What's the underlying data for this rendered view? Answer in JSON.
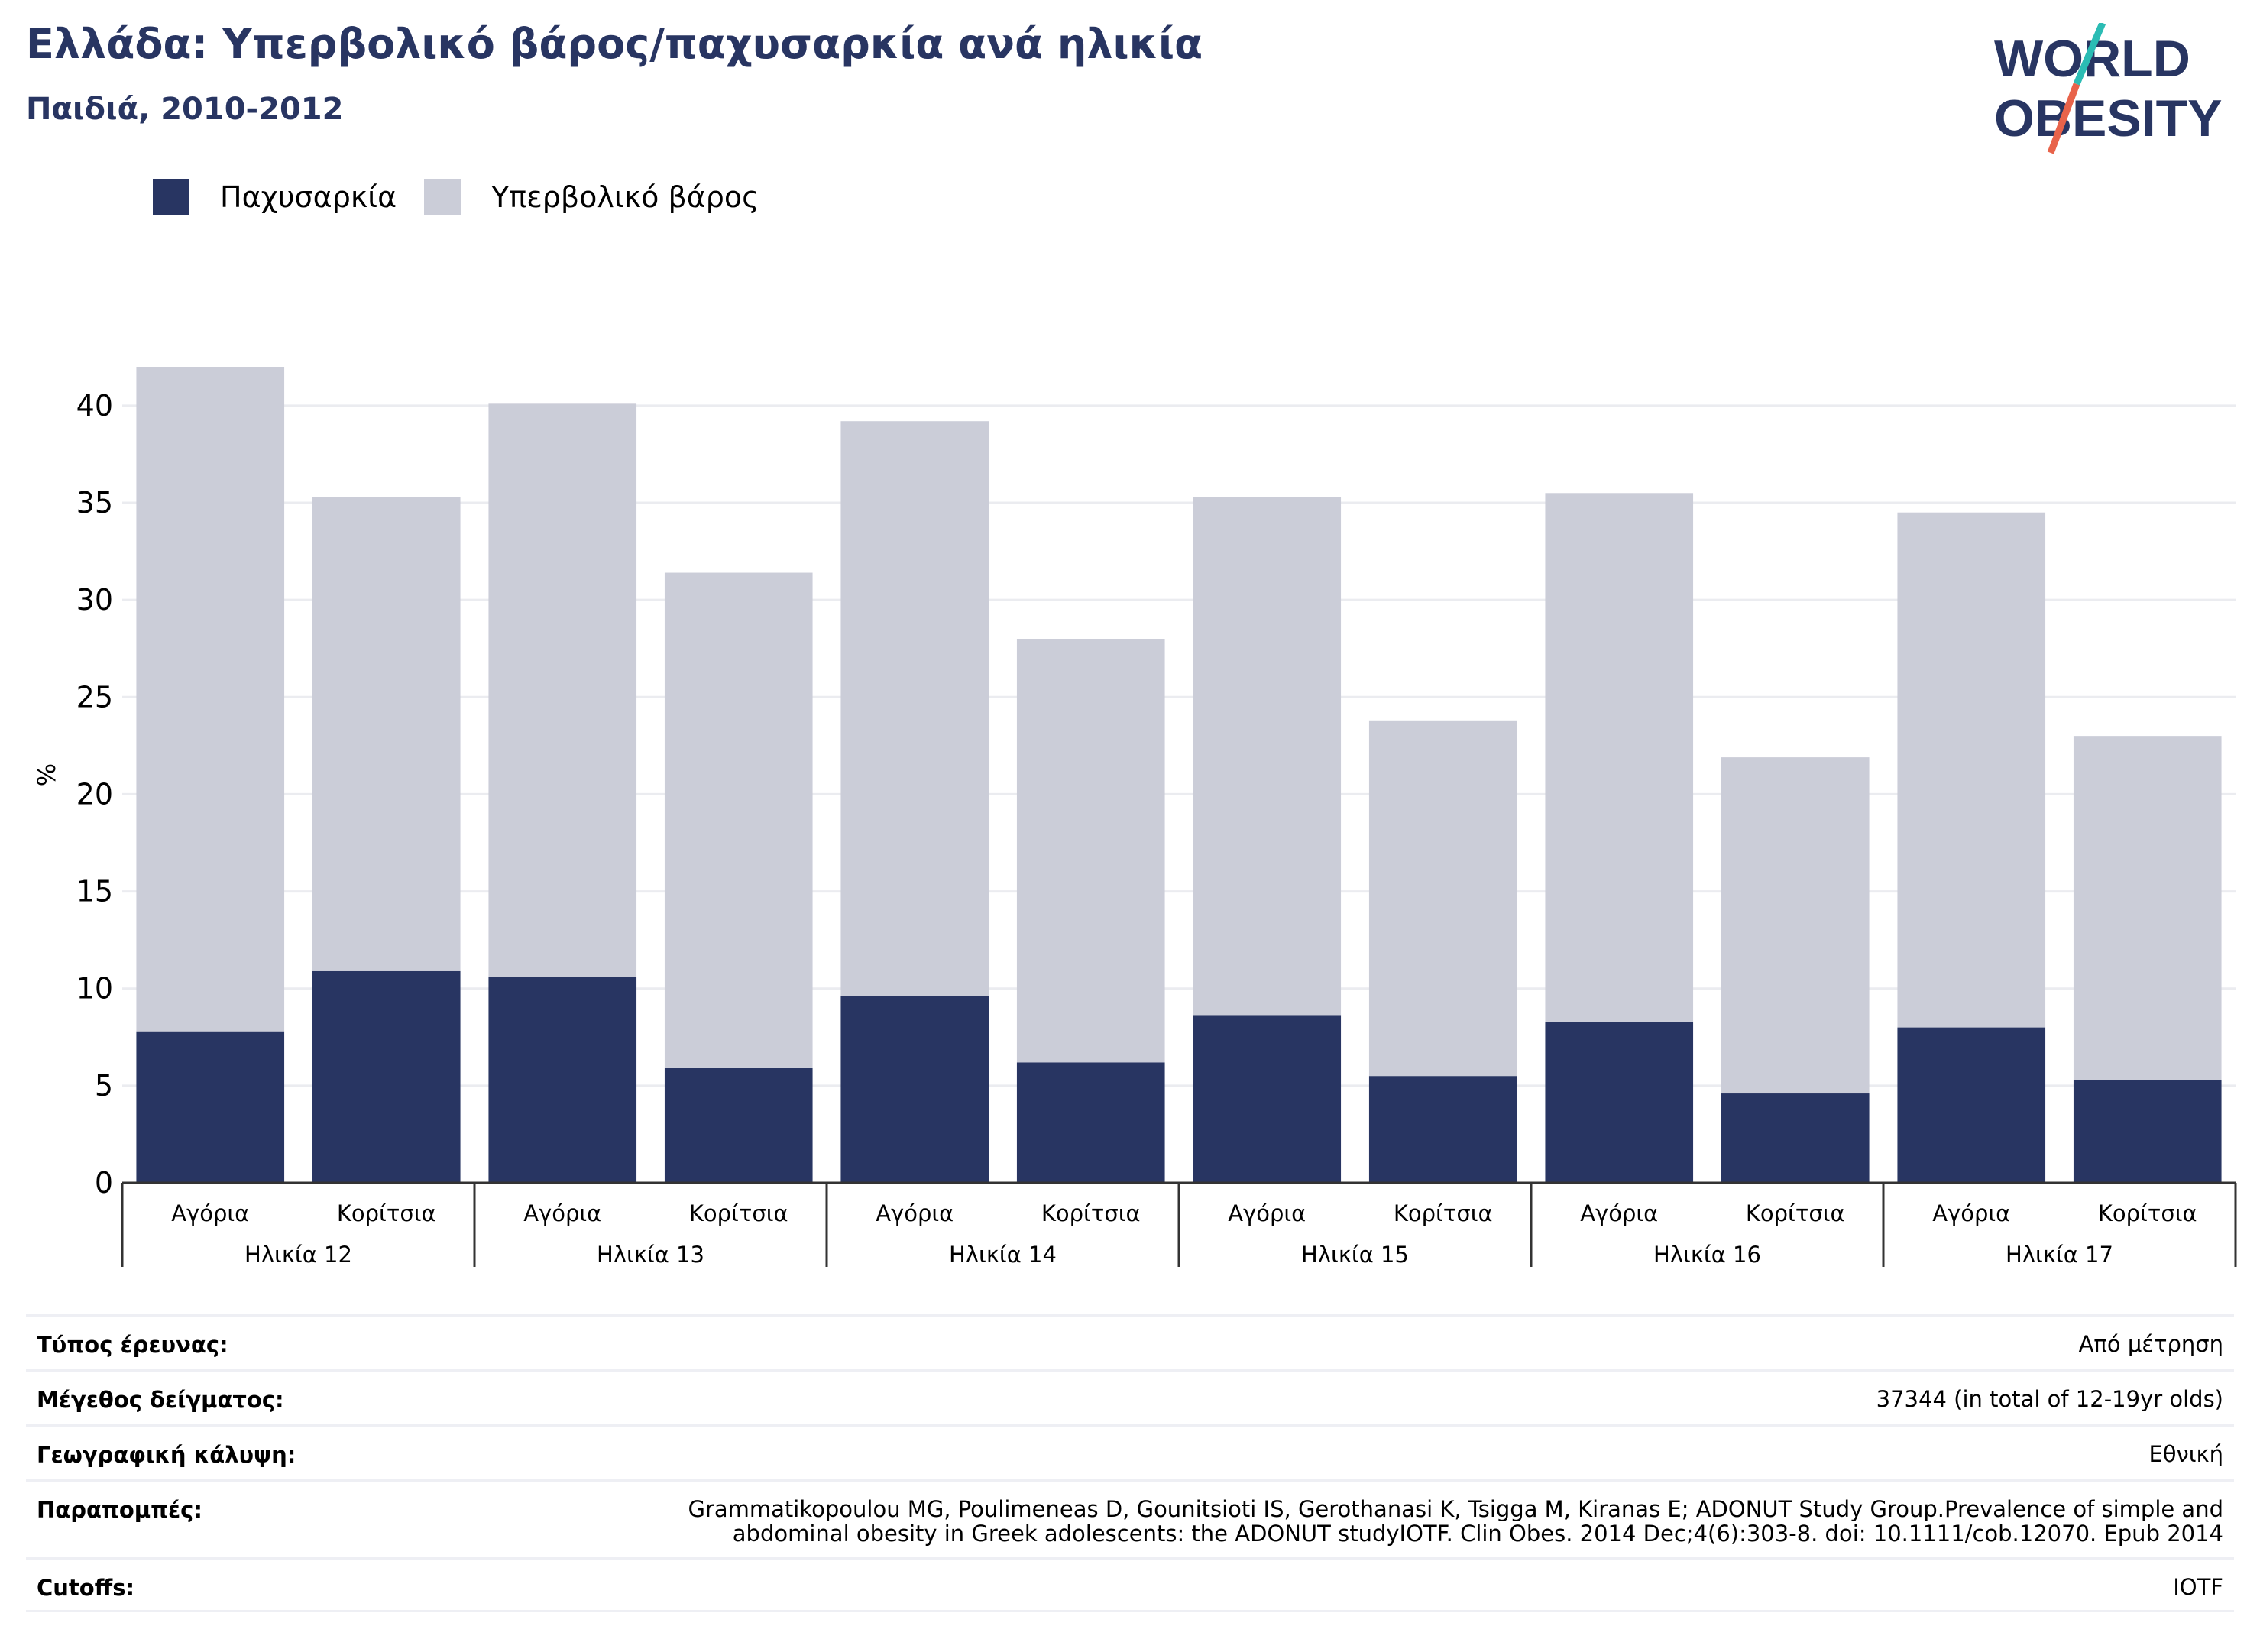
{
  "header": {
    "title": "Ελλάδα: Υπερβολικό βάρος/παχυσαρκία ανά ηλικία",
    "subtitle": "Παιδιά, 2010-2012"
  },
  "logo": {
    "line1": "WORLD",
    "line2": "OBESITY",
    "accent_colors": [
      "#2bbcb4",
      "#e8634a"
    ],
    "text_color": "#283562"
  },
  "colors": {
    "obesity": "#283562",
    "overweight": "#cbcdd8",
    "grid": "#ebecf0"
  },
  "chart_data": {
    "type": "bar",
    "stacked": true,
    "ylabel": "%",
    "ylim": [
      0,
      42
    ],
    "yticks": [
      0,
      5,
      10,
      15,
      20,
      25,
      30,
      35,
      40
    ],
    "grid": true,
    "legend_position": "top-left",
    "categories": [
      "Αγόρια",
      "Κορίτσια",
      "Αγόρια",
      "Κορίτσια",
      "Αγόρια",
      "Κορίτσια",
      "Αγόρια",
      "Κορίτσια",
      "Αγόρια",
      "Κορίτσια",
      "Αγόρια",
      "Κορίτσια"
    ],
    "groups": [
      "Ηλικία 12",
      "Ηλικία 13",
      "Ηλικία 14",
      "Ηλικία 15",
      "Ηλικία 16",
      "Ηλικία 17"
    ],
    "series": [
      {
        "name": "Παχυσαρκία",
        "color": "#283562",
        "values": [
          7.8,
          10.9,
          10.6,
          5.9,
          9.6,
          6.2,
          8.6,
          5.5,
          8.3,
          4.6,
          8.0,
          5.3
        ]
      },
      {
        "name": "Υπερβολικό βάρος",
        "color": "#cbcdd8",
        "values": [
          34.2,
          24.4,
          29.5,
          25.5,
          29.6,
          21.8,
          26.7,
          18.3,
          27.2,
          17.3,
          26.5,
          17.7
        ]
      }
    ],
    "totals": [
      42.0,
      35.3,
      40.1,
      31.4,
      39.2,
      28.0,
      35.3,
      23.8,
      35.5,
      21.9,
      34.5,
      23.0
    ]
  },
  "meta": [
    {
      "label": "Τύπος έρευνας:",
      "value": "Από μέτρηση"
    },
    {
      "label": "Μέγεθος δείγματος:",
      "value": "37344 (in total of 12-19yr olds)"
    },
    {
      "label": "Γεωγραφική κάλυψη:",
      "value": "Εθνική"
    },
    {
      "label": "Παραπομπές:",
      "value": "Grammatikopoulou MG, Poulimeneas D, Gounitsioti IS, Gerothanasi K, Tsigga M, Kiranas E; ADONUT Study Group.Prevalence of simple and abdominal obesity in Greek adolescents: the ADONUT studyIOTF. Clin Obes. 2014 Dec;4(6):303-8. doi: 10.1111/cob.12070. Epub 2014"
    },
    {
      "label": "Cutoffs:",
      "value": "IOTF"
    }
  ]
}
